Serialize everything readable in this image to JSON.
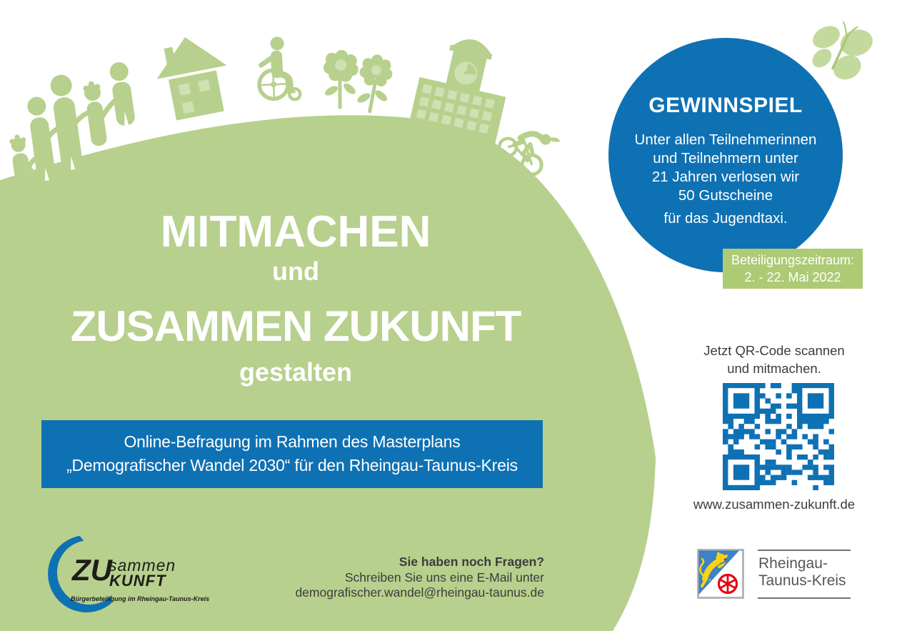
{
  "poster": {
    "title": {
      "line1": "MITMACHEN",
      "line2": "und",
      "line3": "ZUSAMMEN ZUKUNFT",
      "line4": "gestalten"
    },
    "banner": {
      "line1": "Online-Befragung im Rahmen des Masterplans",
      "line2": "„Demografischer Wandel 2030“ für den Rheingau-Taunus-Kreis"
    },
    "contest": {
      "heading": "GEWINNSPIEL",
      "lines": [
        "Unter allen Teilnehmerinnen",
        "und Teilnehmern unter",
        "21 Jahren verlosen wir",
        "50 Gutscheine",
        "für das Jugendtaxi."
      ]
    },
    "participation": {
      "line1": "Beteiligungszeitraum:",
      "line2": "2. - 22. Mai 2022"
    },
    "qr": {
      "caption_line1": "Jetzt QR-Code scannen",
      "caption_line2": "und mitmachen.",
      "url": "www.zusammen-zukunft.de"
    },
    "contact": {
      "line1": "Sie haben noch Fragen?",
      "line2": "Schreiben Sie uns eine E-Mail unter",
      "line3": "demografischer.wandel@rheingau-taunus.de"
    },
    "logo_zukunft": {
      "zu": "ZU",
      "sammen": "sammen",
      "kunft": "KUNFT",
      "tagline": "Bürgerbeteiligung im Rheingau-Taunus-Kreis"
    },
    "logo_rtk": {
      "line1": "Rheingau-",
      "line2": "Taunus-Kreis"
    },
    "icons": {
      "people-holding-hands-icon": "svg-silhouette",
      "house-icon": "svg-silhouette",
      "wheelchair-user-icon": "svg-silhouette",
      "flowers-icon": "svg-silhouette",
      "town-hall-icon": "svg-silhouette",
      "cyclist-icon": "svg-silhouette",
      "butterfly-icon": "svg-silhouette",
      "qr-code": "svg-pattern",
      "coat-of-arms-icon": "svg-shield",
      "swoosh-icon": "svg-crescent"
    },
    "colors": {
      "green": "#b7d08d",
      "green_light": "#cfe0b2",
      "green_badge": "#adca75",
      "blue": "#0e71b4",
      "shield_blue": "#3c82c4",
      "shield_yellow": "#f9d215",
      "shield_red": "#e30613",
      "text_dark": "#3c3c3b",
      "rtk_gray": "#56565a"
    }
  }
}
